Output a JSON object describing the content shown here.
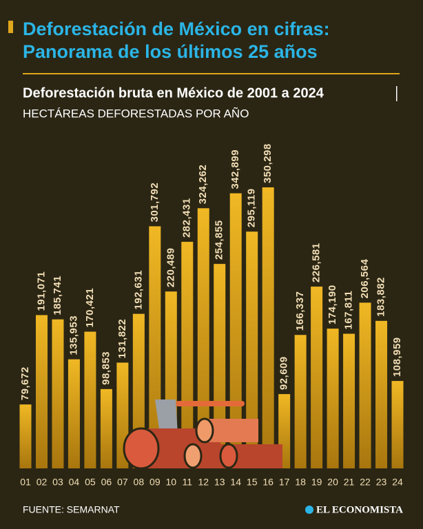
{
  "chart_data": {
    "type": "bar",
    "title_lines": [
      "Deforestación de México en cifras:",
      "Panorama de los últimos 25 años"
    ],
    "subtitle": "Deforestación bruta en México de 2001 a 2024",
    "units": "HECTÁREAS DEFORESTADAS POR AÑO",
    "categories": [
      "01",
      "02",
      "03",
      "04",
      "05",
      "06",
      "07",
      "08",
      "09",
      "10",
      "11",
      "12",
      "13",
      "14",
      "15",
      "16",
      "17",
      "18",
      "19",
      "20",
      "21",
      "22",
      "23",
      "24"
    ],
    "values": [
      79672,
      191071,
      185741,
      135953,
      170421,
      98853,
      131822,
      192631,
      301792,
      220489,
      282431,
      324262,
      254855,
      342899,
      295119,
      350298,
      92609,
      166337,
      226581,
      174190,
      167811,
      206564,
      183882,
      108959
    ],
    "value_labels": [
      "79,672",
      "191,071",
      "185,741",
      "135,953",
      "170,421",
      "98,853",
      "131,822",
      "192,631",
      "301,792",
      "220,489",
      "282,431",
      "324,262",
      "254,855",
      "342,899",
      "295,119",
      "350,298",
      "92,609",
      "166,337",
      "226,581",
      "174,190",
      "167,811",
      "206,564",
      "183,882",
      "108,959"
    ],
    "color": "#e0a61c",
    "source": "FUENTE: SEMARNAT",
    "brand": "EL ECONOMISTA"
  }
}
